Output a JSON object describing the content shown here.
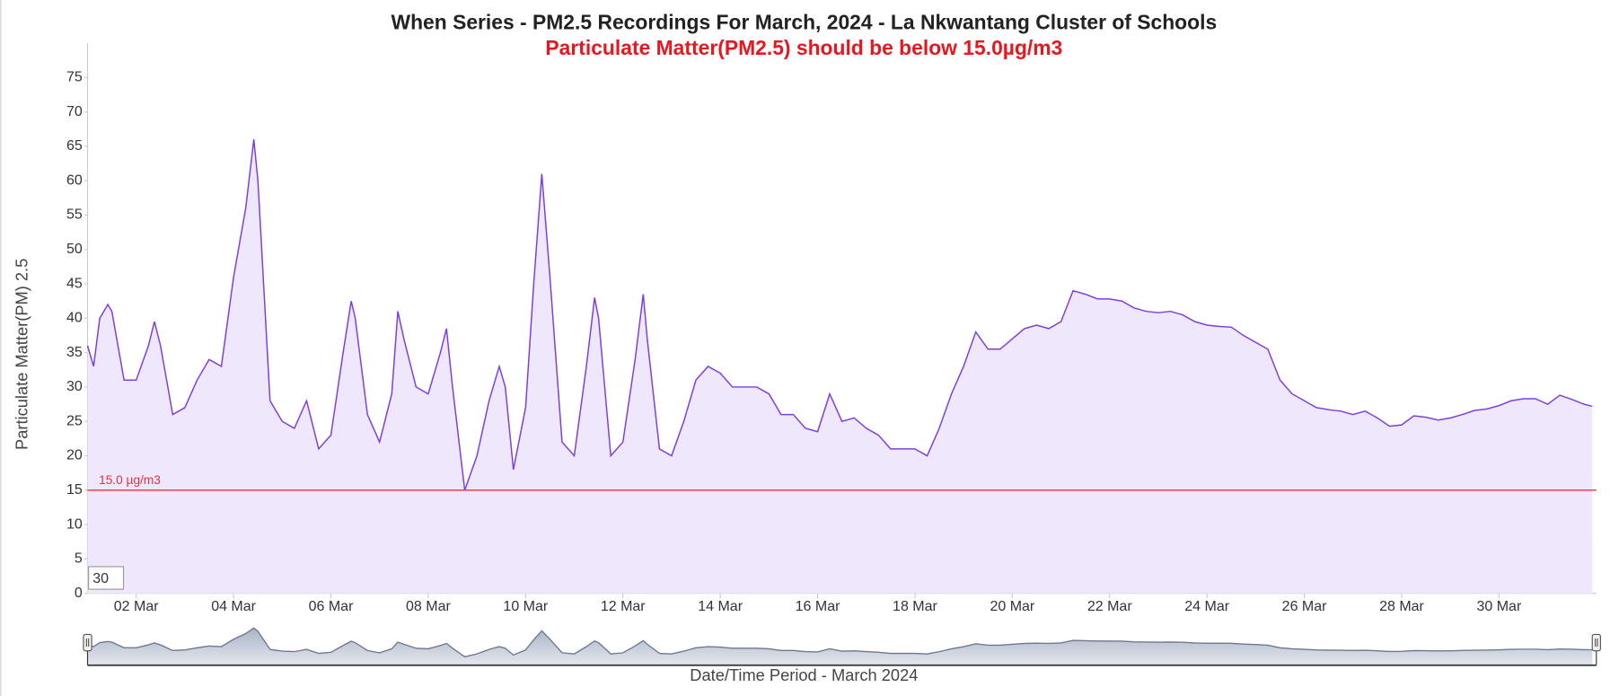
{
  "chart_data": {
    "type": "area",
    "title": "When Series - PM2.5 Recordings For March, 2024 - La Nkwantang Cluster of Schools",
    "subtitle": "Particulate Matter(PM2.5) should be below 15.0µg/m3",
    "y_label": "Particulate Matter(PM) 2.5",
    "x_label": "Date/Time Period - March 2024",
    "input_value": "30",
    "color": "#7b3fe4",
    "fill": "#efe8fd",
    "threshold": {
      "value": 15,
      "label": "15.0 µg/m3",
      "color": "#e8313b"
    },
    "ylim": [
      0,
      80
    ],
    "yticks": [
      0,
      5,
      10,
      15,
      20,
      25,
      30,
      35,
      40,
      45,
      50,
      55,
      60,
      65,
      70,
      75
    ],
    "xlim": [
      "2024-03-01T00:00",
      "2024-04-01T00:00"
    ],
    "xticks": [
      {
        "value": "2024-03-02T00:00",
        "label": "02 Mar"
      },
      {
        "value": "2024-03-04T00:00",
        "label": "04 Mar"
      },
      {
        "value": "2024-03-06T00:00",
        "label": "06 Mar"
      },
      {
        "value": "2024-03-08T00:00",
        "label": "08 Mar"
      },
      {
        "value": "2024-03-10T00:00",
        "label": "10 Mar"
      },
      {
        "value": "2024-03-12T00:00",
        "label": "12 Mar"
      },
      {
        "value": "2024-03-14T00:00",
        "label": "14 Mar"
      },
      {
        "value": "2024-03-16T00:00",
        "label": "16 Mar"
      },
      {
        "value": "2024-03-18T00:00",
        "label": "18 Mar"
      },
      {
        "value": "2024-03-20T00:00",
        "label": "20 Mar"
      },
      {
        "value": "2024-03-22T00:00",
        "label": "22 Mar"
      },
      {
        "value": "2024-03-24T00:00",
        "label": "24 Mar"
      },
      {
        "value": "2024-03-26T00:00",
        "label": "26 Mar"
      },
      {
        "value": "2024-03-28T00:00",
        "label": "28 Mar"
      },
      {
        "value": "2024-03-30T00:00",
        "label": "30 Mar"
      }
    ],
    "x": [
      "2024-03-01T00:00",
      "2024-03-01T03:00",
      "2024-03-01T06:00",
      "2024-03-01T10:00",
      "2024-03-01T12:00",
      "2024-03-01T18:00",
      "2024-03-02T00:00",
      "2024-03-02T06:00",
      "2024-03-02T09:00",
      "2024-03-02T12:00",
      "2024-03-02T18:00",
      "2024-03-03T00:00",
      "2024-03-03T06:00",
      "2024-03-03T12:00",
      "2024-03-03T18:00",
      "2024-03-04T00:00",
      "2024-03-04T06:00",
      "2024-03-04T10:00",
      "2024-03-04T12:00",
      "2024-03-04T18:00",
      "2024-03-05T00:00",
      "2024-03-05T06:00",
      "2024-03-05T12:00",
      "2024-03-05T18:00",
      "2024-03-06T00:00",
      "2024-03-06T06:00",
      "2024-03-06T10:00",
      "2024-03-06T12:00",
      "2024-03-06T18:00",
      "2024-03-07T00:00",
      "2024-03-07T06:00",
      "2024-03-07T09:00",
      "2024-03-07T12:00",
      "2024-03-07T18:00",
      "2024-03-08T00:00",
      "2024-03-08T06:00",
      "2024-03-08T09:00",
      "2024-03-08T12:00",
      "2024-03-08T18:00",
      "2024-03-09T00:00",
      "2024-03-09T06:00",
      "2024-03-09T11:00",
      "2024-03-09T14:00",
      "2024-03-09T18:00",
      "2024-03-10T00:00",
      "2024-03-10T04:00",
      "2024-03-10T08:00",
      "2024-03-10T12:00",
      "2024-03-10T18:00",
      "2024-03-11T00:00",
      "2024-03-11T06:00",
      "2024-03-11T10:00",
      "2024-03-11T12:00",
      "2024-03-11T18:00",
      "2024-03-12T00:00",
      "2024-03-12T06:00",
      "2024-03-12T10:00",
      "2024-03-12T12:00",
      "2024-03-12T18:00",
      "2024-03-13T00:00",
      "2024-03-13T06:00",
      "2024-03-13T12:00",
      "2024-03-13T18:00",
      "2024-03-14T00:00",
      "2024-03-14T06:00",
      "2024-03-14T12:00",
      "2024-03-14T18:00",
      "2024-03-15T00:00",
      "2024-03-15T06:00",
      "2024-03-15T12:00",
      "2024-03-15T18:00",
      "2024-03-16T00:00",
      "2024-03-16T06:00",
      "2024-03-16T12:00",
      "2024-03-16T18:00",
      "2024-03-17T00:00",
      "2024-03-17T06:00",
      "2024-03-17T12:00",
      "2024-03-17T18:00",
      "2024-03-18T00:00",
      "2024-03-18T06:00",
      "2024-03-18T12:00",
      "2024-03-18T18:00",
      "2024-03-19T00:00",
      "2024-03-19T06:00",
      "2024-03-19T12:00",
      "2024-03-19T18:00",
      "2024-03-20T00:00",
      "2024-03-20T06:00",
      "2024-03-20T12:00",
      "2024-03-20T18:00",
      "2024-03-21T00:00",
      "2024-03-21T06:00",
      "2024-03-21T12:00",
      "2024-03-21T18:00",
      "2024-03-22T00:00",
      "2024-03-22T06:00",
      "2024-03-22T12:00",
      "2024-03-22T18:00",
      "2024-03-23T00:00",
      "2024-03-23T06:00",
      "2024-03-23T12:00",
      "2024-03-23T18:00",
      "2024-03-24T00:00",
      "2024-03-24T06:00",
      "2024-03-24T12:00",
      "2024-03-24T18:00",
      "2024-03-25T00:00",
      "2024-03-25T06:00",
      "2024-03-25T12:00",
      "2024-03-25T18:00",
      "2024-03-26T00:00",
      "2024-03-26T06:00",
      "2024-03-26T12:00",
      "2024-03-26T18:00",
      "2024-03-27T00:00",
      "2024-03-27T06:00",
      "2024-03-27T12:00",
      "2024-03-27T18:00",
      "2024-03-28T00:00",
      "2024-03-28T06:00",
      "2024-03-28T12:00",
      "2024-03-28T18:00",
      "2024-03-29T00:00",
      "2024-03-29T06:00",
      "2024-03-29T12:00",
      "2024-03-29T18:00",
      "2024-03-30T00:00",
      "2024-03-30T06:00",
      "2024-03-30T12:00",
      "2024-03-30T18:00",
      "2024-03-31T00:00",
      "2024-03-31T06:00",
      "2024-03-31T12:00",
      "2024-03-31T18:00",
      "2024-03-31T22:00"
    ],
    "values": [
      36,
      33,
      40,
      42,
      41,
      31,
      31,
      36,
      39.5,
      36,
      26,
      27,
      31,
      34,
      33,
      46,
      56,
      66,
      60,
      28,
      25,
      24,
      28,
      21,
      23,
      35,
      42.5,
      40,
      26,
      22,
      29,
      41,
      37,
      30,
      29,
      35,
      38.5,
      30,
      15,
      20,
      28,
      33,
      30,
      18,
      27,
      45,
      61,
      46,
      22,
      20,
      33,
      43,
      40,
      20,
      22,
      34,
      43.5,
      37,
      21,
      20,
      25,
      31,
      33,
      32,
      30,
      30,
      30,
      29,
      26,
      26,
      24,
      23.5,
      29,
      25,
      25.5,
      24,
      23,
      21,
      21,
      21,
      20,
      24,
      29,
      33,
      38,
      35.5,
      35.5,
      37,
      38.5,
      39,
      38.5,
      39.5,
      44,
      43.5,
      42.8,
      42.8,
      42.5,
      41.5,
      41,
      40.8,
      41,
      40.5,
      39.5,
      39,
      38.8,
      38.7,
      37.5,
      36.5,
      35.5,
      31,
      29,
      28,
      27,
      26.7,
      26.5,
      26,
      26.5,
      25.5,
      24.3,
      24.5,
      25.8,
      25.6,
      25.2,
      25.5,
      26,
      26.6,
      26.8,
      27.3,
      28,
      28.3,
      28.3,
      27.5,
      28.8,
      28.2,
      27.5,
      27.2
    ]
  }
}
